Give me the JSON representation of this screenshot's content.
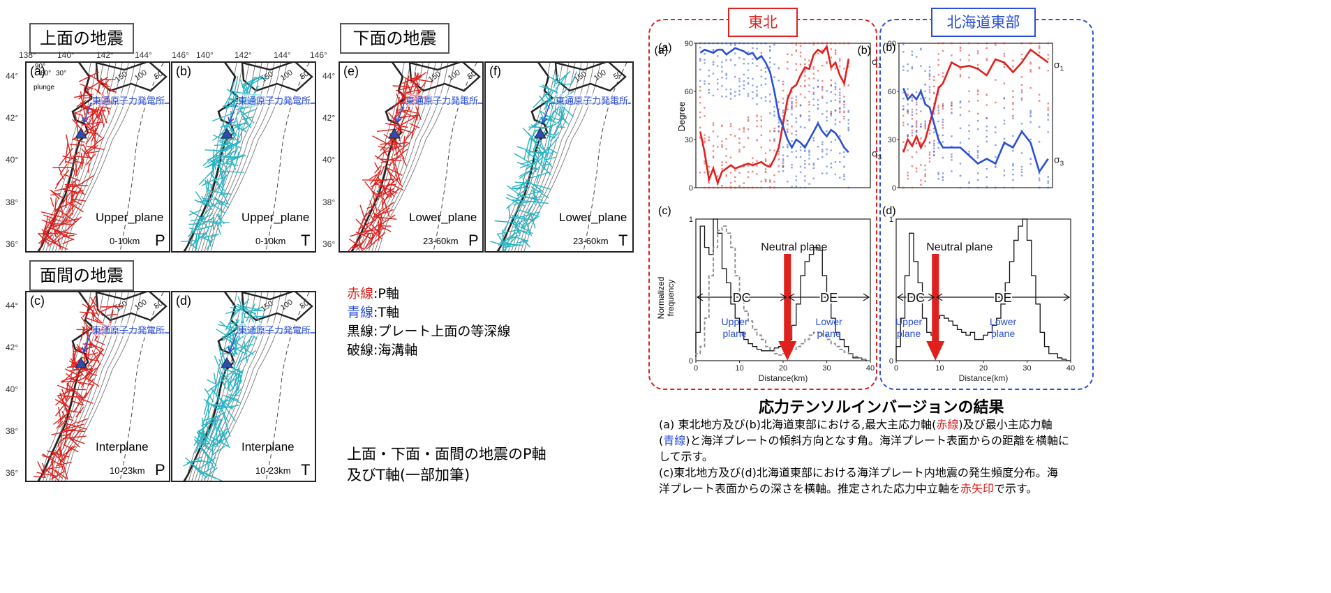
{
  "left_panels": {
    "upper_label": "上面の地震",
    "lower_label": "下面の地震",
    "inter_label": "面間の地震",
    "lon_ticks_a": [
      "138°",
      "140°",
      "142°",
      "144°",
      "146°"
    ],
    "lon_ticks_b": [
      "140°",
      "142°",
      "144°",
      "146°"
    ],
    "lat_ticks": [
      "44°",
      "42°",
      "40°",
      "38°",
      "36°"
    ],
    "plant_label": "東通原子力発電所",
    "plunge_legend": {
      "v90": "90°",
      "v60": "60°",
      "v30": "30°",
      "word": "plunge"
    },
    "maps": [
      {
        "letter": "(a)",
        "plane": "Upper_plane",
        "depth": "0-10km",
        "axis": "P",
        "color": "#e0201d"
      },
      {
        "letter": "(b)",
        "plane": "Upper_plane",
        "depth": "0-10km",
        "axis": "T",
        "color": "#24b5c4"
      },
      {
        "letter": "(e)",
        "plane": "Lower_plane",
        "depth": "23-60km",
        "axis": "P",
        "color": "#e0201d"
      },
      {
        "letter": "(f)",
        "plane": "Lower_plane",
        "depth": "23-60km",
        "axis": "T",
        "color": "#24b5c4"
      },
      {
        "letter": "(c)",
        "plane": "Interplane",
        "depth": "10-23km",
        "axis": "P",
        "color": "#e0201d"
      },
      {
        "letter": "(d)",
        "plane": "Interplane",
        "depth": "10-23km",
        "axis": "T",
        "color": "#24b5c4"
      }
    ],
    "contour_labels": [
      "150",
      "100",
      "50"
    ]
  },
  "legend": {
    "red_key": "赤線",
    "red_val": ":P軸",
    "blue_key": "青線",
    "blue_val": ":T軸",
    "black": "黒線:プレート上面の等深線",
    "dashed": "破線:海溝軸",
    "colors": {
      "red": "#e0201d",
      "blue": "#2a4fd6"
    }
  },
  "left_caption": {
    "line1": "上面・下面・面間の地震のP軸",
    "line2": "及びT軸(一部加筆)"
  },
  "right": {
    "tohoku_header": "東北",
    "hokkaido_header": "北海道東部",
    "tohoku_color": "#e0201d",
    "hokkaido_color": "#2a4fd6",
    "panel_a": "(a)",
    "panel_b": "(b)",
    "panel_c": "(c)",
    "panel_d": "(d)",
    "ylabel_top": "Degree",
    "ylabel_bottom": "Normalized\nfrequency",
    "xlabel": "Distance(km)",
    "sigma1": "σ1",
    "sigma3": "σ3",
    "neutral": "Neutral plane",
    "dc": "DC",
    "de": "DE",
    "upper_plane": "Upper plane",
    "lower_plane": "Lower plane",
    "deg_ticks": [
      "0",
      "30",
      "60",
      "90"
    ],
    "freq_ticks": [
      "0",
      "1"
    ],
    "dist_ticks": [
      "0",
      "10",
      "20",
      "30",
      "40"
    ]
  },
  "results": {
    "title": "応力テンソルインバージョンの結果",
    "line1a": "(a) 東北地方及び(b)北海道東部における,最大主応力軸(",
    "line1_red": "赤線",
    "line1b": ")及び最小主応力軸",
    "line2a": "(",
    "line2_blue": "青線",
    "line2b": ")と海洋プレートの傾斜方向となす角。海洋プレート表面からの距離を横軸に",
    "line3": "して示す。",
    "line4": "(c)東北地方及び(d)北海道東部における海洋プレート内地震の発生頻度分布。海",
    "line5a": "洋プレート表面からの深さを横軸。推定された応力中立軸を",
    "line5_red": "赤矢印",
    "line5b": "で示す。"
  },
  "chart_data": [
    {
      "type": "line",
      "panel": "(a)",
      "region": "東北",
      "ylabel": "Degree",
      "ylim": [
        0,
        90
      ],
      "xlim": [
        0,
        40
      ],
      "series": [
        {
          "name": "σ1",
          "color": "#e0201d",
          "x": [
            1,
            2,
            3,
            4,
            5,
            6,
            7,
            8,
            9,
            10,
            11,
            12,
            13,
            14,
            15,
            16,
            17,
            18,
            19,
            20,
            21,
            22,
            23,
            24,
            25,
            26,
            27,
            28,
            29,
            30,
            31,
            32,
            33,
            34,
            35
          ],
          "values": [
            35,
            22,
            5,
            12,
            3,
            10,
            12,
            14,
            12,
            13,
            14,
            15,
            14,
            15,
            16,
            14,
            13,
            18,
            25,
            40,
            55,
            62,
            64,
            70,
            75,
            74,
            83,
            86,
            84,
            88,
            75,
            78,
            70,
            65,
            80
          ]
        },
        {
          "name": "σ3",
          "color": "#2a4fd6",
          "x": [
            1,
            2,
            3,
            4,
            5,
            6,
            7,
            8,
            9,
            10,
            11,
            12,
            13,
            14,
            15,
            16,
            17,
            18,
            19,
            20,
            21,
            22,
            23,
            24,
            25,
            26,
            27,
            28,
            29,
            30,
            31,
            32,
            33,
            34,
            35
          ],
          "values": [
            84,
            86,
            85,
            84,
            86,
            86,
            83,
            85,
            87,
            86,
            85,
            83,
            84,
            80,
            82,
            78,
            72,
            60,
            45,
            38,
            30,
            25,
            30,
            28,
            25,
            30,
            35,
            40,
            35,
            32,
            36,
            34,
            30,
            25,
            22
          ]
        }
      ]
    },
    {
      "type": "line",
      "panel": "(b)",
      "region": "北海道東部",
      "ylabel": "Degree",
      "ylim": [
        0,
        90
      ],
      "xlim": [
        0,
        35
      ],
      "series": [
        {
          "name": "σ1",
          "color": "#e0201d",
          "x": [
            1,
            2,
            3,
            4,
            5,
            6,
            7,
            8,
            9,
            10,
            12,
            14,
            16,
            18,
            20,
            22,
            24,
            26,
            28,
            30,
            32,
            34
          ],
          "values": [
            22,
            30,
            26,
            32,
            25,
            30,
            40,
            50,
            62,
            65,
            78,
            75,
            76,
            74,
            70,
            80,
            78,
            72,
            78,
            86,
            82,
            78
          ]
        },
        {
          "name": "σ3",
          "color": "#2a4fd6",
          "x": [
            1,
            2,
            3,
            4,
            5,
            6,
            7,
            8,
            9,
            10,
            12,
            14,
            16,
            18,
            20,
            22,
            24,
            26,
            28,
            30,
            32,
            34
          ],
          "values": [
            62,
            55,
            58,
            55,
            60,
            52,
            50,
            40,
            30,
            25,
            25,
            25,
            20,
            15,
            18,
            15,
            28,
            25,
            35,
            28,
            10,
            18
          ]
        }
      ]
    },
    {
      "type": "bar",
      "panel": "(c)",
      "region": "東北",
      "ylabel": "Normalized frequency",
      "xlabel": "Distance(km)",
      "ylim": [
        0,
        1
      ],
      "xlim": [
        0,
        40
      ],
      "series": [
        {
          "name": "Upper plane",
          "style": "solid",
          "values": [
            0.2,
            0.95,
            0.8,
            0.75,
            1.0,
            0.9,
            0.65,
            0.55,
            0.4,
            0.3,
            0.2,
            0.15,
            0.12,
            0.1,
            0.08,
            0.07,
            0.07,
            0.07,
            0.09,
            0.1,
            0.1,
            0.15,
            0.25,
            0.4,
            0.6,
            0.7,
            0.75,
            0.8,
            0.78,
            0.6,
            0.45,
            0.3,
            0.2,
            0.15,
            0.1,
            0.05,
            0.02,
            0.02,
            0.01,
            0.0
          ]
        },
        {
          "name": "Lower plane",
          "style": "dashed",
          "values": [
            0.05,
            0.1,
            0.3,
            0.6,
            0.8,
            0.92,
            0.95,
            0.9,
            0.8,
            0.6,
            0.45,
            0.35,
            0.28,
            0.22,
            0.18,
            0.15,
            0.1,
            0.08,
            0.05,
            0.04,
            0.05,
            0.06,
            0.08,
            0.1,
            0.12,
            0.15,
            0.18,
            0.2,
            0.2,
            0.18,
            0.15,
            0.12,
            0.1,
            0.08,
            0.06,
            0.05,
            0.03,
            0.02,
            0.01,
            0.0
          ]
        }
      ],
      "neutral_plane_km": 21
    },
    {
      "type": "bar",
      "panel": "(d)",
      "region": "北海道東部",
      "ylabel": "Normalized frequency",
      "xlabel": "Distance(km)",
      "ylim": [
        0,
        1
      ],
      "xlim": [
        0,
        40
      ],
      "series": [
        {
          "name": "Upper plane",
          "style": "solid",
          "values": [
            0.1,
            0.3,
            0.6,
            0.9,
            0.7,
            0.55,
            0.3,
            0.2,
            0.18,
            0.3,
            0.32,
            0.3,
            0.28,
            0.25,
            0.22,
            0.2,
            0.18,
            0.2,
            0.15,
            0.15,
            0.18,
            0.2,
            0.25,
            0.3,
            0.4,
            0.55,
            0.7,
            0.85,
            0.95,
            1.0,
            0.85,
            0.6,
            0.4,
            0.2,
            0.1,
            0.05,
            0.05,
            0.02,
            0.01,
            0.0
          ]
        }
      ],
      "neutral_plane_km": 9
    }
  ]
}
